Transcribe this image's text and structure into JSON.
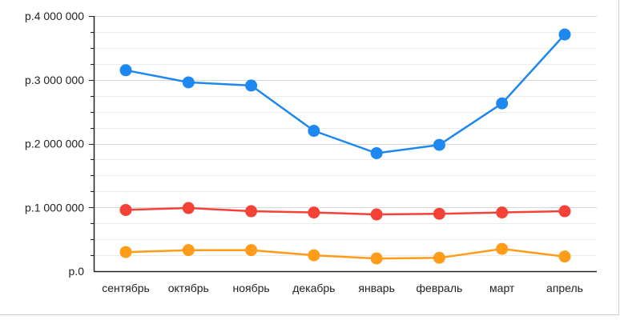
{
  "chart_data": {
    "type": "line",
    "title": "",
    "xlabel": "",
    "ylabel": "",
    "categories": [
      "сентябрь",
      "октябрь",
      "ноябрь",
      "декабрь",
      "январь",
      "февраль",
      "март",
      "апрель"
    ],
    "ylim": [
      0,
      4000000
    ],
    "y_ticks": [
      0,
      1000000,
      2000000,
      3000000,
      4000000
    ],
    "y_tick_labels": [
      "р.0",
      "р.1 000 000",
      "р.2 000 000",
      "р.3 000 000",
      "р.4 000 000"
    ],
    "grid": true,
    "legend": "none",
    "series": [
      {
        "color": "#1e88f0",
        "values": [
          3150000,
          2960000,
          2910000,
          2200000,
          1850000,
          1980000,
          2630000,
          3710000
        ]
      },
      {
        "color": "#f44336",
        "values": [
          960000,
          990000,
          940000,
          920000,
          890000,
          900000,
          920000,
          940000
        ]
      },
      {
        "color": "#ff9c1a",
        "values": [
          300000,
          330000,
          330000,
          250000,
          200000,
          210000,
          350000,
          230000
        ]
      }
    ]
  }
}
